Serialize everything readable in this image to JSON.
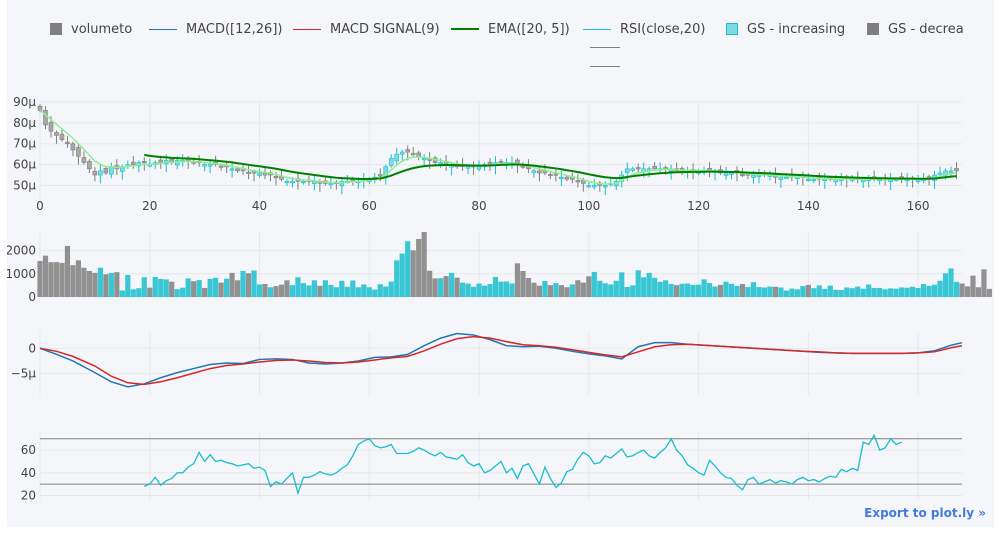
{
  "legend": {
    "items": [
      {
        "label": "volumeto",
        "kind": "box",
        "color": "#7f7f7f"
      },
      {
        "label": "MACD([12,26])",
        "kind": "line",
        "color": "#1f77b4"
      },
      {
        "label": "MACD SIGNAL(9)",
        "kind": "line",
        "color": "#d62728"
      },
      {
        "label": "EMA([20, 5])",
        "kind": "thick",
        "color": "#008000"
      },
      {
        "label": "RSI(close,20)",
        "kind": "line",
        "color": "#17becf"
      },
      {
        "label": "GS - increasing",
        "kind": "box",
        "color": "#17becf"
      },
      {
        "label": "GS - decrea",
        "kind": "box",
        "color": "#7f7f7f"
      }
    ]
  },
  "export_label": "Export to plot.ly »",
  "colors": {
    "increasing": "#17becf",
    "decreasing": "#7f7f7f",
    "macd": "#1f77b4",
    "signal": "#d62728",
    "ema": "#008000",
    "rsi": "#17becf",
    "grid": "#e6e8ef",
    "band": "#7f7f7f"
  },
  "chart_data": [
    {
      "type": "candlestick",
      "xlim": [
        0,
        168
      ],
      "x_ticks": [
        "0",
        "20",
        "40",
        "60",
        "80",
        "100",
        "120",
        "140",
        "160"
      ],
      "ylim": [
        44,
        90
      ],
      "y_ticks": [
        "50μ",
        "60μ",
        "70μ",
        "80μ",
        "90μ"
      ],
      "y_tick_values": [
        50,
        60,
        70,
        80,
        90
      ],
      "close": [
        86,
        79,
        76,
        74,
        72,
        70,
        67,
        64,
        61,
        58,
        55,
        57,
        56,
        59,
        58,
        59,
        60,
        60,
        61,
        61,
        60,
        61,
        61,
        62,
        61,
        62,
        62,
        62,
        61,
        61,
        60,
        60,
        60,
        59,
        59,
        58,
        57,
        57,
        56,
        56,
        56,
        55,
        55,
        54,
        53,
        52,
        52,
        52,
        52,
        52,
        52,
        51,
        51,
        51,
        51,
        52,
        52,
        52,
        52,
        53,
        53,
        54,
        55,
        59,
        63,
        65,
        66,
        66,
        65,
        64,
        63,
        62,
        61,
        61,
        60,
        60,
        59,
        59,
        59,
        59,
        59,
        60,
        60,
        61,
        61,
        61,
        61,
        60,
        59,
        58,
        57,
        56,
        56,
        55,
        55,
        54,
        53,
        53,
        52,
        51,
        50,
        50,
        50,
        50,
        51,
        52,
        55,
        58,
        58,
        58,
        58,
        58,
        58,
        58,
        58,
        58,
        57,
        57,
        57,
        57,
        57,
        57,
        57,
        57,
        56,
        56,
        56,
        56,
        55,
        55,
        55,
        55,
        55,
        55,
        54,
        54,
        54,
        54,
        54,
        54,
        53,
        53,
        53,
        53,
        53,
        53,
        53,
        53,
        53,
        53,
        53,
        53,
        53,
        53,
        53,
        53,
        53,
        53,
        53,
        53,
        53,
        53,
        53,
        55,
        56,
        57,
        57,
        57
      ]
    },
    {
      "type": "bar",
      "xlim": [
        0,
        168
      ],
      "ylim": [
        0,
        2800
      ],
      "y_ticks": [
        "0",
        "1000",
        "2000"
      ],
      "y_tick_values": [
        0,
        1000,
        2000
      ],
      "values": [
        1550,
        1780,
        1500,
        1500,
        1470,
        2200,
        1370,
        1580,
        1260,
        1120,
        1040,
        1260,
        980,
        1030,
        1070,
        280,
        950,
        330,
        380,
        850,
        400,
        860,
        780,
        760,
        660,
        340,
        400,
        800,
        680,
        730,
        390,
        780,
        830,
        620,
        790,
        1040,
        720,
        1120,
        1020,
        1140,
        540,
        560,
        420,
        470,
        530,
        720,
        510,
        850,
        600,
        500,
        720,
        480,
        720,
        520,
        420,
        700,
        440,
        710,
        420,
        540,
        420,
        320,
        550,
        450,
        660,
        1580,
        1870,
        2400,
        2010,
        2500,
        2800,
        1130,
        800,
        810,
        900,
        1040,
        830,
        620,
        580,
        440,
        580,
        490,
        560,
        860,
        660,
        670,
        580,
        1450,
        1120,
        820,
        620,
        490,
        690,
        510,
        600,
        510,
        420,
        540,
        720,
        620,
        890,
        1080,
        700,
        590,
        540,
        700,
        1060,
        430,
        500,
        1150,
        850,
        1040,
        830,
        650,
        720,
        560,
        510,
        570,
        580,
        520,
        530,
        760,
        600,
        450,
        520,
        660,
        570,
        480,
        560,
        430,
        640,
        430,
        410,
        450,
        440,
        410,
        280,
        360,
        330,
        470,
        520,
        380,
        500,
        350,
        490,
        310,
        300,
        410,
        380,
        450,
        360,
        540,
        390,
        390,
        330,
        370,
        360,
        410,
        400,
        440,
        390,
        560,
        480,
        530,
        700,
        1020,
        1230,
        650,
        580,
        460,
        920,
        420,
        1190,
        350
      ]
    },
    {
      "type": "line",
      "xlim": [
        0,
        168
      ],
      "ylim": [
        -9.2,
        3.2
      ],
      "y_ticks": [
        "0",
        "−5μ"
      ],
      "y_tick_values": [
        0,
        -5
      ],
      "series": [
        {
          "name": "MACD([12,26])",
          "x": [
            0,
            3,
            6,
            10,
            13,
            16,
            19,
            22,
            25,
            28,
            31,
            34,
            37,
            40,
            43,
            46,
            49,
            52,
            55,
            58,
            61,
            64,
            67,
            70,
            73,
            76,
            79,
            82,
            85,
            88,
            91,
            94,
            97,
            100,
            103,
            106,
            109,
            112,
            115,
            118,
            121,
            124,
            127,
            130,
            133,
            136,
            139,
            142,
            145,
            148,
            151,
            154,
            157,
            160,
            163,
            166,
            168
          ],
          "y": [
            0,
            -1.2,
            -2.5,
            -4.8,
            -6.6,
            -7.6,
            -7.0,
            -5.8,
            -4.8,
            -4.0,
            -3.2,
            -2.9,
            -3.0,
            -2.2,
            -2.1,
            -2.2,
            -2.9,
            -3.1,
            -2.9,
            -2.5,
            -1.8,
            -1.7,
            -1.2,
            0.5,
            2.0,
            2.9,
            2.6,
            1.7,
            0.5,
            0.3,
            0.4,
            0.0,
            -0.6,
            -1.1,
            -1.5,
            -2.1,
            0.3,
            1.1,
            1.1,
            0.8,
            0.6,
            0.4,
            0.2,
            0.0,
            -0.2,
            -0.4,
            -0.6,
            -0.8,
            -0.9,
            -1.0,
            -1.0,
            -1.0,
            -1.0,
            -0.9,
            -0.5,
            0.6,
            1.1
          ]
        },
        {
          "name": "MACD SIGNAL(9)",
          "x": [
            0,
            3,
            6,
            10,
            13,
            16,
            19,
            22,
            25,
            28,
            31,
            34,
            37,
            40,
            43,
            46,
            49,
            52,
            55,
            58,
            61,
            64,
            67,
            70,
            73,
            76,
            79,
            82,
            85,
            88,
            91,
            94,
            97,
            100,
            103,
            106,
            109,
            112,
            115,
            118,
            121,
            124,
            127,
            130,
            133,
            136,
            139,
            142,
            145,
            148,
            151,
            154,
            157,
            160,
            163,
            166,
            168
          ],
          "y": [
            0,
            -0.6,
            -1.6,
            -3.5,
            -5.5,
            -6.8,
            -7.1,
            -6.6,
            -5.8,
            -4.9,
            -4.0,
            -3.4,
            -3.1,
            -2.7,
            -2.4,
            -2.3,
            -2.5,
            -2.8,
            -2.9,
            -2.7,
            -2.3,
            -1.9,
            -1.6,
            -0.5,
            0.8,
            1.9,
            2.3,
            2.0,
            1.3,
            0.7,
            0.5,
            0.2,
            -0.3,
            -0.8,
            -1.3,
            -1.7,
            -0.7,
            0.3,
            0.7,
            0.8,
            0.6,
            0.4,
            0.2,
            0.0,
            -0.2,
            -0.4,
            -0.6,
            -0.7,
            -0.9,
            -1.0,
            -1.0,
            -1.0,
            -1.0,
            -0.9,
            -0.7,
            0.1,
            0.5
          ]
        }
      ]
    },
    {
      "type": "line",
      "xlim": [
        0,
        168
      ],
      "ylim": [
        16,
        76
      ],
      "y_ticks": [
        "20",
        "40",
        "60"
      ],
      "y_tick_values": [
        20,
        40,
        60
      ],
      "bands": [
        70,
        30
      ],
      "series": [
        {
          "name": "RSI(close,20)",
          "x_start": 19,
          "values": [
            28,
            30,
            36,
            29,
            33,
            35,
            40,
            40,
            45,
            48,
            58,
            50,
            56,
            50,
            51,
            49,
            48,
            46,
            47,
            48,
            44,
            45,
            42,
            28,
            32,
            30,
            35,
            40,
            22,
            36,
            36,
            38,
            41,
            39,
            38,
            40,
            44,
            47,
            55,
            65,
            68,
            70,
            64,
            62,
            63,
            65,
            57,
            57,
            57,
            59,
            62,
            60,
            57,
            55,
            58,
            54,
            53,
            52,
            56,
            49,
            46,
            48,
            40,
            42,
            46,
            50,
            40,
            44,
            35,
            46,
            48,
            39,
            30,
            45,
            35,
            27,
            31,
            41,
            43,
            52,
            58,
            55,
            48,
            49,
            55,
            53,
            57,
            61,
            54,
            55,
            58,
            60,
            55,
            53,
            58,
            62,
            70,
            60,
            55,
            47,
            44,
            40,
            38,
            51,
            46,
            40,
            36,
            35,
            29,
            25,
            34,
            36,
            30,
            32,
            34,
            31,
            33,
            32,
            30,
            34,
            36,
            33,
            34,
            32,
            35,
            37,
            36,
            43,
            41,
            44,
            42,
            67,
            65,
            73,
            60,
            62,
            70,
            65,
            67
          ]
        }
      ]
    }
  ]
}
